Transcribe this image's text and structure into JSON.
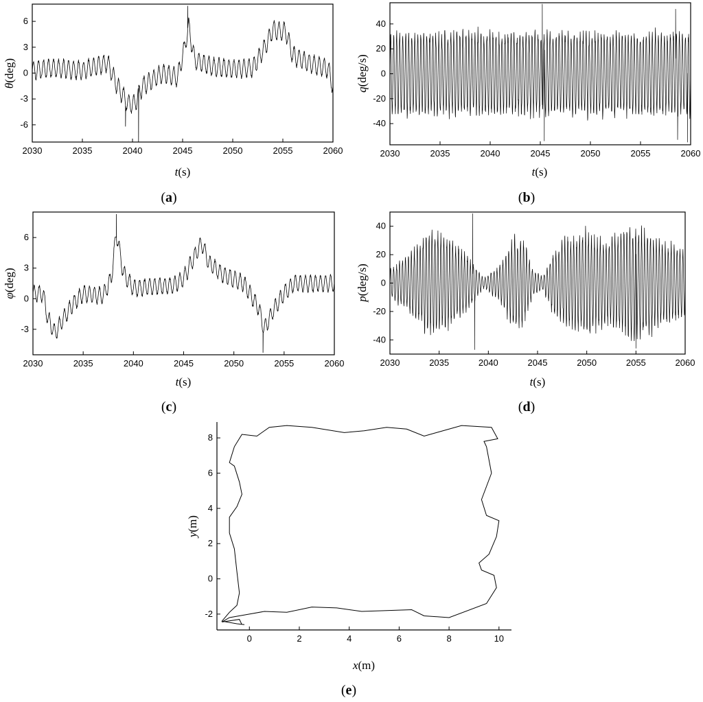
{
  "chart_data": [
    {
      "type": "line",
      "panel_label": "a",
      "xlabel_var": "t",
      "xlabel_unit": "(s)",
      "ylabel_var": "θ",
      "ylabel_unit": "(deg)",
      "xlim": [
        2030,
        2060
      ],
      "ylim": [
        -8,
        8
      ],
      "xticks": [
        "2030",
        "2035",
        "2040",
        "2045",
        "2050",
        "2055",
        "2060"
      ],
      "yticks": [
        "-6",
        "-3",
        "0",
        "3",
        "6"
      ],
      "series": [
        {
          "color": "#000000",
          "osc_amplitude": 1.2,
          "osc_period_s": 0.5,
          "baseline": [
            [
              2030,
              0.3
            ],
            [
              2032,
              0.6
            ],
            [
              2035,
              0.3
            ],
            [
              2037.5,
              1.2
            ],
            [
              2038.5,
              -1.5
            ],
            [
              2039.5,
              -3.5
            ],
            [
              2040.2,
              -3.6
            ],
            [
              2041,
              -1.5
            ],
            [
              2043,
              0
            ],
            [
              2044.5,
              -0.5
            ],
            [
              2045.2,
              3
            ],
            [
              2045.6,
              5.5
            ],
            [
              2046.2,
              1.5
            ],
            [
              2048,
              0.7
            ],
            [
              2050,
              0.5
            ],
            [
              2052,
              0.6
            ],
            [
              2053,
              2.5
            ],
            [
              2054,
              5
            ],
            [
              2055.3,
              4.8
            ],
            [
              2056,
              2
            ],
            [
              2058,
              1
            ],
            [
              2059.5,
              0.5
            ],
            [
              2060,
              -1.5
            ]
          ],
          "spikes": [
            [
              2040.6,
              -8
            ],
            [
              2045.5,
              7.8
            ],
            [
              2039.3,
              -6.2
            ]
          ]
        }
      ]
    },
    {
      "type": "line",
      "panel_label": "b",
      "xlabel_var": "t",
      "xlabel_unit": "(s)",
      "ylabel_var": "q",
      "ylabel_unit": "(deg/s)",
      "xlim": [
        2030,
        2060
      ],
      "ylim": [
        -57,
        57
      ],
      "xticks": [
        "2030",
        "2035",
        "2040",
        "2045",
        "2050",
        "2055",
        "2060"
      ],
      "yticks": [
        "-40",
        "-20",
        "0",
        "20",
        "40"
      ],
      "series": [
        {
          "color": "#000000",
          "osc_amplitude": 36,
          "osc_period_s": 0.3,
          "baseline": [
            [
              2030,
              0
            ],
            [
              2060,
              0
            ]
          ],
          "spikes": [
            [
              2045.2,
              56
            ],
            [
              2045.4,
              -54
            ],
            [
              2058.5,
              52
            ],
            [
              2058.7,
              -53
            ],
            [
              2059.7,
              -55
            ]
          ]
        }
      ]
    },
    {
      "type": "line",
      "panel_label": "c",
      "xlabel_var": "t",
      "xlabel_unit": "(s)",
      "ylabel_var": "φ",
      "ylabel_unit": "(deg)",
      "xlim": [
        2030,
        2060
      ],
      "ylim": [
        -5.5,
        8.5
      ],
      "xticks": [
        "2030",
        "2035",
        "2040",
        "2045",
        "2050",
        "2055",
        "2060"
      ],
      "yticks": [
        "-3",
        "0",
        "3",
        "6"
      ],
      "series": [
        {
          "color": "#000000",
          "osc_amplitude": 0.9,
          "osc_period_s": 0.5,
          "baseline": [
            [
              2030,
              0.5
            ],
            [
              2031,
              0.5
            ],
            [
              2031.5,
              -2
            ],
            [
              2032.2,
              -3.4
            ],
            [
              2033,
              -2
            ],
            [
              2034,
              -0.5
            ],
            [
              2035,
              0.5
            ],
            [
              2037,
              0.3
            ],
            [
              2037.8,
              2
            ],
            [
              2038.3,
              6.5
            ],
            [
              2039,
              2.5
            ],
            [
              2040,
              1
            ],
            [
              2042,
              1.2
            ],
            [
              2044,
              1.3
            ],
            [
              2045,
              2
            ],
            [
              2046,
              4
            ],
            [
              2046.8,
              5.5
            ],
            [
              2047.5,
              3.5
            ],
            [
              2049,
              2.3
            ],
            [
              2051,
              1.5
            ],
            [
              2052.5,
              -1
            ],
            [
              2053,
              -3
            ],
            [
              2054,
              -1
            ],
            [
              2055,
              0.5
            ],
            [
              2056,
              1.5
            ],
            [
              2058,
              1.5
            ],
            [
              2060,
              1.5
            ]
          ],
          "spikes": [
            [
              2038.3,
              8.3
            ],
            [
              2052.9,
              -5.3
            ]
          ]
        }
      ]
    },
    {
      "type": "line",
      "panel_label": "d",
      "xlabel_var": "t",
      "xlabel_unit": "(s)",
      "ylabel_var": "p",
      "ylabel_unit": "(deg/s)",
      "xlim": [
        2030,
        2060
      ],
      "ylim": [
        -50,
        50
      ],
      "xticks": [
        "2030",
        "2035",
        "2040",
        "2045",
        "2050",
        "2055",
        "2060"
      ],
      "yticks": [
        "-40",
        "-20",
        "0",
        "20",
        "40"
      ],
      "series": [
        {
          "color": "#000000",
          "osc_period_s": 0.3,
          "baseline": [
            [
              2030,
              0
            ],
            [
              2060,
              0
            ]
          ],
          "envelope": [
            [
              2030,
              12
            ],
            [
              2032,
              22
            ],
            [
              2034,
              40
            ],
            [
              2036,
              35
            ],
            [
              2038,
              20
            ],
            [
              2039.5,
              4
            ],
            [
              2041,
              12
            ],
            [
              2042.5,
              34
            ],
            [
              2043.5,
              35
            ],
            [
              2044.5,
              10
            ],
            [
              2045.5,
              5
            ],
            [
              2046.5,
              22
            ],
            [
              2048,
              35
            ],
            [
              2050,
              40
            ],
            [
              2052,
              32
            ],
            [
              2054,
              42
            ],
            [
              2055.5,
              42
            ],
            [
              2057,
              35
            ],
            [
              2060,
              25
            ]
          ],
          "spikes": [
            [
              2038.4,
              49
            ],
            [
              2038.6,
              -47
            ],
            [
              2055,
              -46
            ]
          ]
        }
      ]
    },
    {
      "type": "line",
      "panel_label": "e",
      "xlabel_var": "x",
      "xlabel_unit": "(m)",
      "ylabel_var": "y",
      "ylabel_unit": "(m)",
      "xlim": [
        -1.3,
        10.5
      ],
      "ylim": [
        -2.9,
        8.9
      ],
      "xticks": [
        "0",
        "2",
        "4",
        "6",
        "8",
        "10"
      ],
      "yticks": [
        "-2",
        "0",
        "2",
        "4",
        "6",
        "8"
      ],
      "series": [
        {
          "color": "#000000",
          "path": [
            [
              -0.3,
              -2.6
            ],
            [
              -0.4,
              -2.3
            ],
            [
              -1.1,
              -2.45
            ],
            [
              -0.8,
              -2.2
            ],
            [
              0,
              -2.0
            ],
            [
              0.6,
              -1.85
            ],
            [
              1.5,
              -1.9
            ],
            [
              2.5,
              -1.6
            ],
            [
              3.5,
              -1.65
            ],
            [
              4.5,
              -1.85
            ],
            [
              5.5,
              -1.8
            ],
            [
              6.5,
              -1.75
            ],
            [
              7,
              -2.1
            ],
            [
              8,
              -2.2
            ],
            [
              9.5,
              -1.4
            ],
            [
              9.9,
              -0.5
            ],
            [
              9.8,
              0.2
            ],
            [
              9.3,
              0.5
            ],
            [
              9.2,
              0.9
            ],
            [
              9.6,
              1.4
            ],
            [
              9.9,
              2.4
            ],
            [
              10,
              3.3
            ],
            [
              9.5,
              3.6
            ],
            [
              9.3,
              4.5
            ],
            [
              9.7,
              6
            ],
            [
              9.5,
              7.5
            ],
            [
              9.4,
              7.8
            ],
            [
              9.95,
              7.95
            ],
            [
              9.7,
              8.6
            ],
            [
              8.5,
              8.7
            ],
            [
              7.5,
              8.3
            ],
            [
              7,
              8.1
            ],
            [
              6.3,
              8.5
            ],
            [
              5.5,
              8.6
            ],
            [
              4.6,
              8.4
            ],
            [
              3.8,
              8.3
            ],
            [
              2.5,
              8.6
            ],
            [
              1.5,
              8.7
            ],
            [
              0.8,
              8.6
            ],
            [
              0.5,
              8.3
            ],
            [
              0.3,
              8.1
            ],
            [
              -0.3,
              8.2
            ],
            [
              -0.6,
              7.5
            ],
            [
              -0.8,
              6.6
            ],
            [
              -0.6,
              6.4
            ],
            [
              -0.4,
              5.5
            ],
            [
              -0.3,
              4.8
            ],
            [
              -0.5,
              4.1
            ],
            [
              -0.8,
              3.5
            ],
            [
              -0.8,
              2.6
            ],
            [
              -0.6,
              1.7
            ],
            [
              -0.5,
              0.4
            ],
            [
              -0.4,
              -0.8
            ],
            [
              -0.5,
              -1.5
            ],
            [
              -0.8,
              -1.9
            ],
            [
              -1.1,
              -2.4
            ],
            [
              -0.5,
              -2.55
            ],
            [
              -0.2,
              -2.6
            ]
          ]
        }
      ]
    }
  ]
}
